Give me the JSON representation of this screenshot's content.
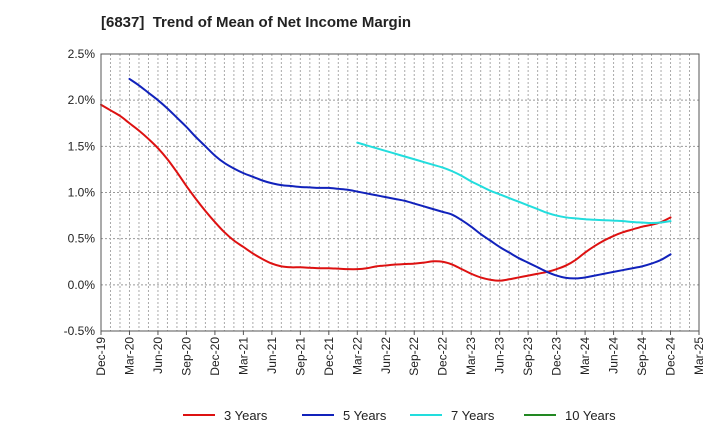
{
  "title": "[6837]  Trend of Mean of Net Income Margin",
  "chart_data": {
    "type": "line",
    "title": "[6837]  Trend of Mean of Net Income Margin",
    "xlabel": "",
    "ylabel": "",
    "x_tick_labels": [
      "Dec-19",
      "Mar-20",
      "Jun-20",
      "Sep-20",
      "Dec-20",
      "Mar-21",
      "Jun-21",
      "Sep-21",
      "Dec-21",
      "Mar-22",
      "Jun-22",
      "Sep-22",
      "Dec-22",
      "Mar-23",
      "Jun-23",
      "Sep-23",
      "Dec-23",
      "Mar-24",
      "Jun-24",
      "Sep-24",
      "Dec-24",
      "Mar-25"
    ],
    "y_tick_labels": [
      "2.5%",
      "2.0%",
      "1.5%",
      "1.0%",
      "0.5%",
      "0.0%",
      "-0.5%"
    ],
    "y_ticks": [
      2.5,
      2.0,
      1.5,
      1.0,
      0.5,
      0.0,
      -0.5
    ],
    "ylim": [
      -0.5,
      2.5
    ],
    "y_unit": "%",
    "grid": true,
    "legend_position": "bottom",
    "series": [
      {
        "name": "3 Years",
        "color": "#dd1111",
        "points": [
          [
            "Dec-19",
            1.95
          ],
          [
            "Jan-20",
            1.89
          ],
          [
            "Feb-20",
            1.83
          ],
          [
            "Mar-20",
            1.75
          ],
          [
            "Apr-20",
            1.67
          ],
          [
            "May-20",
            1.58
          ],
          [
            "Jun-20",
            1.48
          ],
          [
            "Jul-20",
            1.36
          ],
          [
            "Aug-20",
            1.22
          ],
          [
            "Sep-20",
            1.07
          ],
          [
            "Oct-20",
            0.93
          ],
          [
            "Nov-20",
            0.8
          ],
          [
            "Dec-20",
            0.68
          ],
          [
            "Jan-21",
            0.57
          ],
          [
            "Feb-21",
            0.48
          ],
          [
            "Mar-21",
            0.41
          ],
          [
            "Apr-21",
            0.34
          ],
          [
            "May-21",
            0.28
          ],
          [
            "Jun-21",
            0.23
          ],
          [
            "Jul-21",
            0.2
          ],
          [
            "Aug-21",
            0.19
          ],
          [
            "Sep-21",
            0.19
          ],
          [
            "Oct-21",
            0.185
          ],
          [
            "Nov-21",
            0.18
          ],
          [
            "Dec-21",
            0.18
          ],
          [
            "Jan-22",
            0.175
          ],
          [
            "Feb-22",
            0.17
          ],
          [
            "Mar-22",
            0.17
          ],
          [
            "Apr-22",
            0.18
          ],
          [
            "May-22",
            0.2
          ],
          [
            "Jun-22",
            0.21
          ],
          [
            "Jul-22",
            0.22
          ],
          [
            "Aug-22",
            0.225
          ],
          [
            "Sep-22",
            0.23
          ],
          [
            "Oct-22",
            0.24
          ],
          [
            "Nov-22",
            0.255
          ],
          [
            "Dec-22",
            0.25
          ],
          [
            "Jan-23",
            0.22
          ],
          [
            "Feb-23",
            0.17
          ],
          [
            "Mar-23",
            0.12
          ],
          [
            "Apr-23",
            0.08
          ],
          [
            "May-23",
            0.055
          ],
          [
            "Jun-23",
            0.045
          ],
          [
            "Jul-23",
            0.06
          ],
          [
            "Aug-23",
            0.08
          ],
          [
            "Sep-23",
            0.1
          ],
          [
            "Oct-23",
            0.12
          ],
          [
            "Nov-23",
            0.14
          ],
          [
            "Dec-23",
            0.17
          ],
          [
            "Jan-24",
            0.21
          ],
          [
            "Feb-24",
            0.27
          ],
          [
            "Mar-24",
            0.35
          ],
          [
            "Apr-24",
            0.42
          ],
          [
            "May-24",
            0.48
          ],
          [
            "Jun-24",
            0.53
          ],
          [
            "Jul-24",
            0.57
          ],
          [
            "Aug-24",
            0.6
          ],
          [
            "Sep-24",
            0.63
          ],
          [
            "Oct-24",
            0.65
          ],
          [
            "Nov-24",
            0.68
          ],
          [
            "Dec-24",
            0.73
          ]
        ]
      },
      {
        "name": "5 Years",
        "color": "#1122bb",
        "points": [
          [
            "Mar-20",
            2.23
          ],
          [
            "Apr-20",
            2.16
          ],
          [
            "May-20",
            2.08
          ],
          [
            "Jun-20",
            2.0
          ],
          [
            "Jul-20",
            1.91
          ],
          [
            "Aug-20",
            1.81
          ],
          [
            "Sep-20",
            1.71
          ],
          [
            "Oct-20",
            1.6
          ],
          [
            "Nov-20",
            1.5
          ],
          [
            "Dec-20",
            1.4
          ],
          [
            "Jan-21",
            1.32
          ],
          [
            "Feb-21",
            1.26
          ],
          [
            "Mar-21",
            1.21
          ],
          [
            "Apr-21",
            1.17
          ],
          [
            "May-21",
            1.13
          ],
          [
            "Jun-21",
            1.1
          ],
          [
            "Jul-21",
            1.08
          ],
          [
            "Aug-21",
            1.07
          ],
          [
            "Sep-21",
            1.06
          ],
          [
            "Oct-21",
            1.055
          ],
          [
            "Nov-21",
            1.05
          ],
          [
            "Dec-21",
            1.05
          ],
          [
            "Jan-22",
            1.04
          ],
          [
            "Feb-22",
            1.03
          ],
          [
            "Mar-22",
            1.01
          ],
          [
            "Apr-22",
            0.99
          ],
          [
            "May-22",
            0.97
          ],
          [
            "Jun-22",
            0.95
          ],
          [
            "Jul-22",
            0.93
          ],
          [
            "Aug-22",
            0.91
          ],
          [
            "Sep-22",
            0.88
          ],
          [
            "Oct-22",
            0.85
          ],
          [
            "Nov-22",
            0.82
          ],
          [
            "Dec-22",
            0.79
          ],
          [
            "Jan-23",
            0.76
          ],
          [
            "Feb-23",
            0.7
          ],
          [
            "Mar-23",
            0.63
          ],
          [
            "Apr-23",
            0.55
          ],
          [
            "May-23",
            0.48
          ],
          [
            "Jun-23",
            0.41
          ],
          [
            "Jul-23",
            0.35
          ],
          [
            "Aug-23",
            0.29
          ],
          [
            "Sep-23",
            0.24
          ],
          [
            "Oct-23",
            0.19
          ],
          [
            "Nov-23",
            0.14
          ],
          [
            "Dec-23",
            0.1
          ],
          [
            "Jan-24",
            0.075
          ],
          [
            "Feb-24",
            0.07
          ],
          [
            "Mar-24",
            0.08
          ],
          [
            "Apr-24",
            0.1
          ],
          [
            "May-24",
            0.12
          ],
          [
            "Jun-24",
            0.14
          ],
          [
            "Jul-24",
            0.16
          ],
          [
            "Aug-24",
            0.18
          ],
          [
            "Sep-24",
            0.2
          ],
          [
            "Oct-24",
            0.23
          ],
          [
            "Nov-24",
            0.27
          ],
          [
            "Dec-24",
            0.33
          ]
        ]
      },
      {
        "name": "7 Years",
        "color": "#22dddd",
        "points": [
          [
            "Mar-22",
            1.54
          ],
          [
            "Apr-22",
            1.51
          ],
          [
            "May-22",
            1.48
          ],
          [
            "Jun-22",
            1.45
          ],
          [
            "Jul-22",
            1.42
          ],
          [
            "Aug-22",
            1.39
          ],
          [
            "Sep-22",
            1.36
          ],
          [
            "Oct-22",
            1.33
          ],
          [
            "Nov-22",
            1.3
          ],
          [
            "Dec-22",
            1.27
          ],
          [
            "Jan-23",
            1.23
          ],
          [
            "Feb-23",
            1.18
          ],
          [
            "Mar-23",
            1.12
          ],
          [
            "Apr-23",
            1.07
          ],
          [
            "May-23",
            1.02
          ],
          [
            "Jun-23",
            0.98
          ],
          [
            "Jul-23",
            0.94
          ],
          [
            "Aug-23",
            0.9
          ],
          [
            "Sep-23",
            0.86
          ],
          [
            "Oct-23",
            0.82
          ],
          [
            "Nov-23",
            0.78
          ],
          [
            "Dec-23",
            0.75
          ],
          [
            "Jan-24",
            0.73
          ],
          [
            "Feb-24",
            0.72
          ],
          [
            "Mar-24",
            0.71
          ],
          [
            "Apr-24",
            0.705
          ],
          [
            "May-24",
            0.7
          ],
          [
            "Jun-24",
            0.695
          ],
          [
            "Jul-24",
            0.69
          ],
          [
            "Aug-24",
            0.68
          ],
          [
            "Sep-24",
            0.675
          ],
          [
            "Oct-24",
            0.67
          ],
          [
            "Nov-24",
            0.675
          ],
          [
            "Dec-24",
            0.69
          ]
        ]
      },
      {
        "name": "10 Years",
        "color": "#228822",
        "points": []
      }
    ]
  }
}
